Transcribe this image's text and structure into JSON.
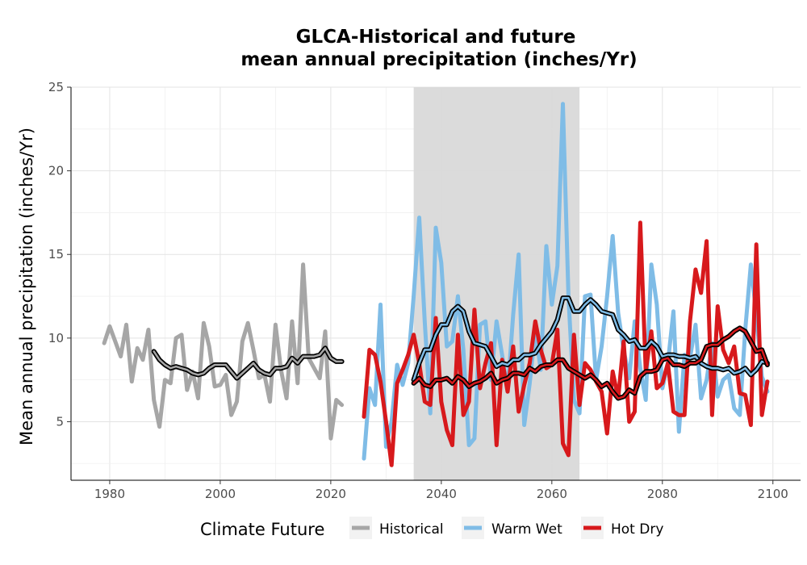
{
  "chart_data": {
    "type": "line",
    "title": [
      "GLCA-Historical and future",
      "mean annual precipitation (inches/Yr)"
    ],
    "xlabel": "",
    "ylabel": "Mean annual precipitation (inches/Yr)",
    "xlim": [
      1973,
      2105
    ],
    "ylim": [
      1.5,
      25
    ],
    "xticks": [
      1980,
      2000,
      2020,
      2040,
      2060,
      2080,
      2100
    ],
    "yticks": [
      5,
      10,
      15,
      20,
      25
    ],
    "grid": true,
    "shaded_period": [
      2035,
      2065
    ],
    "legend": {
      "title": "Climate Future",
      "position": "bottom"
    },
    "series": [
      {
        "name": "Historical",
        "color": "#a6a6a6",
        "x": [
          1979,
          1980,
          1981,
          1982,
          1983,
          1984,
          1985,
          1986,
          1987,
          1988,
          1989,
          1990,
          1991,
          1992,
          1993,
          1994,
          1995,
          1996,
          1997,
          1998,
          1999,
          2000,
          2001,
          2002,
          2003,
          2004,
          2005,
          2006,
          2007,
          2008,
          2009,
          2010,
          2011,
          2012,
          2013,
          2014,
          2015,
          2016,
          2017,
          2018,
          2019,
          2020,
          2021,
          2022
        ],
        "values": [
          9.7,
          10.7,
          9.8,
          8.9,
          10.8,
          7.4,
          9.4,
          8.7,
          10.5,
          6.3,
          4.7,
          7.5,
          7.3,
          10.0,
          10.2,
          6.9,
          8.0,
          6.4,
          10.9,
          9.5,
          7.1,
          7.2,
          7.8,
          5.4,
          6.2,
          9.8,
          10.9,
          9.3,
          7.6,
          7.8,
          6.2,
          10.8,
          8.1,
          6.4,
          11.0,
          7.3,
          14.4,
          8.8,
          8.2,
          7.6,
          10.4,
          4.0,
          6.3,
          6.0
        ],
        "moving_average": {
          "x": [
            1988,
            1989,
            1990,
            1991,
            1992,
            1993,
            1994,
            1995,
            1996,
            1997,
            1998,
            1999,
            2000,
            2001,
            2002,
            2003,
            2004,
            2005,
            2006,
            2007,
            2008,
            2009,
            2010,
            2011,
            2012,
            2013,
            2014,
            2015,
            2016,
            2017,
            2018,
            2019,
            2020,
            2021,
            2022
          ],
          "values": [
            9.2,
            8.7,
            8.4,
            8.2,
            8.3,
            8.2,
            8.1,
            7.9,
            7.8,
            7.9,
            8.2,
            8.4,
            8.4,
            8.4,
            8.0,
            7.6,
            7.9,
            8.2,
            8.5,
            8.1,
            7.9,
            7.8,
            8.2,
            8.2,
            8.3,
            8.8,
            8.5,
            8.9,
            8.9,
            8.9,
            9.0,
            9.4,
            8.8,
            8.6,
            8.6
          ]
        }
      },
      {
        "name": "Warm Wet",
        "color": "#7fbce6",
        "x": [
          2026,
          2027,
          2028,
          2029,
          2030,
          2031,
          2032,
          2033,
          2034,
          2035,
          2036,
          2037,
          2038,
          2039,
          2040,
          2041,
          2042,
          2043,
          2044,
          2045,
          2046,
          2047,
          2048,
          2049,
          2050,
          2051,
          2052,
          2053,
          2054,
          2055,
          2056,
          2057,
          2058,
          2059,
          2060,
          2061,
          2062,
          2063,
          2064,
          2065,
          2066,
          2067,
          2068,
          2069,
          2070,
          2071,
          2072,
          2073,
          2074,
          2075,
          2076,
          2077,
          2078,
          2079,
          2080,
          2081,
          2082,
          2083,
          2084,
          2085,
          2086,
          2087,
          2088,
          2089,
          2090,
          2091,
          2092,
          2093,
          2094,
          2095,
          2096,
          2097,
          2098,
          2099
        ],
        "values": [
          2.8,
          7.0,
          6.0,
          12.0,
          3.5,
          5.0,
          8.4,
          7.2,
          8.5,
          12.5,
          17.2,
          11.0,
          5.5,
          16.6,
          14.5,
          9.5,
          9.8,
          12.5,
          9.3,
          3.6,
          4.0,
          10.8,
          11.0,
          7.5,
          11.0,
          9.0,
          6.8,
          11.4,
          15.0,
          4.8,
          7.3,
          10.5,
          8.1,
          15.5,
          12.0,
          14.3,
          24.0,
          12.5,
          6.3,
          5.5,
          12.5,
          12.6,
          7.5,
          9.5,
          12.5,
          16.1,
          11.5,
          9.3,
          7.6,
          11.0,
          8.2,
          6.3,
          14.4,
          12.0,
          7.0,
          8.5,
          11.6,
          4.4,
          9.0,
          8.8,
          10.8,
          6.4,
          7.5,
          9.7,
          6.5,
          7.5,
          7.8,
          5.8,
          5.4,
          10.5,
          14.4,
          11.4,
          7.7,
          6.8
        ],
        "moving_average": {
          "x": [
            2035,
            2036,
            2037,
            2038,
            2039,
            2040,
            2041,
            2042,
            2043,
            2044,
            2045,
            2046,
            2047,
            2048,
            2049,
            2050,
            2051,
            2052,
            2053,
            2054,
            2055,
            2056,
            2057,
            2058,
            2059,
            2060,
            2061,
            2062,
            2063,
            2064,
            2065,
            2066,
            2067,
            2068,
            2069,
            2070,
            2071,
            2072,
            2073,
            2074,
            2075,
            2076,
            2077,
            2078,
            2079,
            2080,
            2081,
            2082,
            2083,
            2084,
            2085,
            2086,
            2087,
            2088,
            2089,
            2090,
            2091,
            2092,
            2093,
            2094,
            2095,
            2096,
            2097,
            2098,
            2099
          ],
          "values": [
            7.5,
            8.5,
            9.3,
            9.3,
            10.2,
            10.8,
            10.8,
            11.6,
            11.9,
            11.6,
            10.4,
            9.7,
            9.6,
            9.5,
            8.9,
            8.3,
            8.5,
            8.4,
            8.7,
            8.7,
            9.0,
            9.0,
            9.1,
            9.6,
            10.0,
            10.4,
            11.1,
            12.4,
            12.4,
            11.6,
            11.6,
            12.0,
            12.3,
            12.0,
            11.6,
            11.5,
            11.4,
            10.5,
            10.2,
            9.8,
            9.9,
            9.4,
            9.4,
            9.8,
            9.5,
            8.9,
            9.0,
            9.0,
            8.9,
            8.9,
            8.8,
            8.9,
            8.5,
            8.3,
            8.2,
            8.2,
            8.1,
            8.2,
            7.9,
            8.0,
            8.2,
            7.8,
            8.1,
            8.6,
            8.5
          ],
          "window": 10
        }
      },
      {
        "name": "Hot Dry",
        "color": "#d7191c",
        "x": [
          2026,
          2027,
          2028,
          2029,
          2030,
          2031,
          2032,
          2033,
          2034,
          2035,
          2036,
          2037,
          2038,
          2039,
          2040,
          2041,
          2042,
          2043,
          2044,
          2045,
          2046,
          2047,
          2048,
          2049,
          2050,
          2051,
          2052,
          2053,
          2054,
          2055,
          2056,
          2057,
          2058,
          2059,
          2060,
          2061,
          2062,
          2063,
          2064,
          2065,
          2066,
          2067,
          2068,
          2069,
          2070,
          2071,
          2072,
          2073,
          2074,
          2075,
          2076,
          2077,
          2078,
          2079,
          2080,
          2081,
          2082,
          2083,
          2084,
          2085,
          2086,
          2087,
          2088,
          2089,
          2090,
          2091,
          2092,
          2093,
          2094,
          2095,
          2096,
          2097,
          2098,
          2099
        ],
        "values": [
          5.3,
          9.3,
          9.0,
          7.4,
          5.0,
          2.4,
          7.3,
          8.1,
          9.0,
          10.2,
          8.5,
          6.2,
          6.0,
          11.2,
          6.2,
          4.5,
          3.6,
          10.2,
          5.4,
          6.2,
          11.7,
          7.0,
          8.5,
          9.7,
          3.6,
          8.7,
          6.8,
          9.5,
          5.6,
          7.2,
          8.5,
          11.0,
          9.3,
          8.2,
          8.4,
          10.5,
          3.7,
          3.0,
          10.2,
          6.0,
          8.5,
          8.1,
          7.4,
          6.8,
          4.3,
          8.0,
          6.4,
          9.8,
          5.0,
          5.6,
          16.9,
          8.0,
          10.4,
          7.0,
          7.3,
          8.5,
          5.6,
          5.4,
          5.4,
          11.0,
          14.1,
          12.7,
          15.8,
          5.4,
          11.9,
          9.3,
          8.5,
          9.5,
          6.7,
          6.6,
          4.8,
          15.6,
          5.4,
          7.4
        ],
        "moving_average": {
          "x": [
            2035,
            2036,
            2037,
            2038,
            2039,
            2040,
            2041,
            2042,
            2043,
            2044,
            2045,
            2046,
            2047,
            2048,
            2049,
            2050,
            2051,
            2052,
            2053,
            2054,
            2055,
            2056,
            2057,
            2058,
            2059,
            2060,
            2061,
            2062,
            2063,
            2064,
            2065,
            2066,
            2067,
            2068,
            2069,
            2070,
            2071,
            2072,
            2073,
            2074,
            2075,
            2076,
            2077,
            2078,
            2079,
            2080,
            2081,
            2082,
            2083,
            2084,
            2085,
            2086,
            2087,
            2088,
            2089,
            2090,
            2091,
            2092,
            2093,
            2094,
            2095,
            2096,
            2097,
            2098,
            2099
          ],
          "values": [
            7.3,
            7.6,
            7.2,
            7.1,
            7.5,
            7.5,
            7.6,
            7.3,
            7.7,
            7.5,
            7.1,
            7.3,
            7.4,
            7.6,
            7.9,
            7.3,
            7.5,
            7.6,
            7.9,
            7.9,
            7.8,
            8.2,
            8.0,
            8.3,
            8.4,
            8.4,
            8.7,
            8.7,
            8.2,
            8.0,
            7.8,
            7.6,
            7.8,
            7.5,
            7.1,
            7.3,
            6.8,
            6.4,
            6.5,
            6.9,
            6.7,
            7.7,
            8.0,
            8.0,
            8.1,
            8.7,
            8.8,
            8.4,
            8.4,
            8.3,
            8.5,
            8.5,
            8.7,
            9.5,
            9.6,
            9.6,
            9.9,
            10.1,
            10.4,
            10.6,
            10.4,
            9.8,
            9.2,
            9.3,
            8.4
          ],
          "window": 10
        }
      }
    ]
  }
}
